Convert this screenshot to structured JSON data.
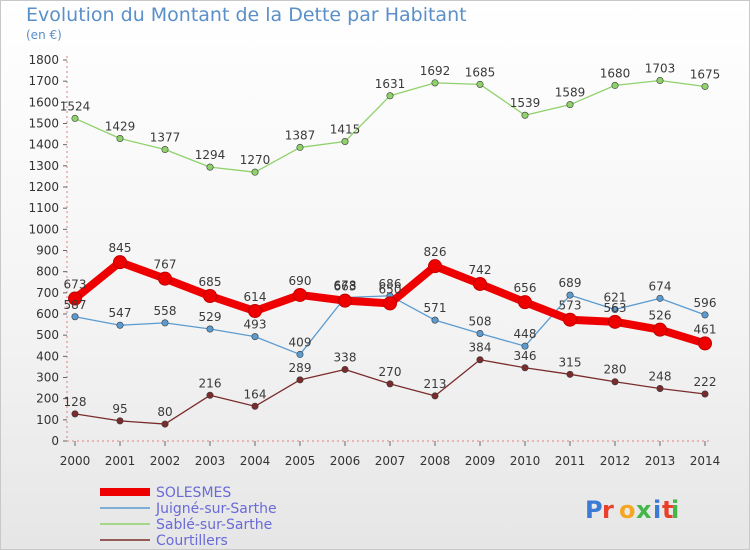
{
  "header": {
    "title": "Evolution du Montant de la Dette par Habitant",
    "subtitle": "(en €)"
  },
  "logo": {
    "text": "Proxiti",
    "colors": [
      "#3b7bd6",
      "#e8402a",
      "#f5a623",
      "#45b649",
      "#3b7bd6",
      "#e8402a",
      "#45b649"
    ]
  },
  "chart_data": {
    "type": "line",
    "title": "Evolution du Montant de la Dette par Habitant",
    "subtitle": "(en €)",
    "xlabel": "",
    "ylabel": "",
    "categories": [
      "2000",
      "2001",
      "2002",
      "2003",
      "2004",
      "2005",
      "2006",
      "2007",
      "2008",
      "2009",
      "2010",
      "2011",
      "2012",
      "2013",
      "2014"
    ],
    "ylim": [
      0,
      1800
    ],
    "yticks": [
      0,
      100,
      200,
      300,
      400,
      500,
      600,
      700,
      800,
      900,
      1000,
      1100,
      1200,
      1300,
      1400,
      1500,
      1600,
      1700,
      1800
    ],
    "grid": false,
    "legend_position": "bottom-left",
    "series": [
      {
        "name": "SOLESMES",
        "color": "#ee0000",
        "width": 8,
        "values": [
          673,
          845,
          767,
          685,
          614,
          690,
          663,
          650,
          826,
          742,
          656,
          573,
          563,
          526,
          461
        ],
        "labels": [
          "673",
          "845",
          "767",
          "685",
          "614",
          "690",
          "663",
          "650",
          "826",
          "742",
          "656",
          "573",
          "563",
          "526",
          "461"
        ]
      },
      {
        "name": "Juigné-sur-Sarthe",
        "color": "#5b9bd0",
        "width": 1.3,
        "values": [
          587,
          547,
          558,
          529,
          493,
          409,
          678,
          686,
          571,
          508,
          448,
          689,
          621,
          674,
          596
        ],
        "labels": [
          "587",
          "547",
          "558",
          "529",
          "493",
          "409",
          "678",
          "686",
          "571",
          "508",
          "448",
          "689",
          "621",
          "674",
          "596"
        ]
      },
      {
        "name": "Sablé-sur-Sarthe",
        "color": "#8fd16a",
        "width": 1.3,
        "values": [
          1524,
          1429,
          1377,
          1294,
          1270,
          1387,
          1415,
          1631,
          1692,
          1685,
          1539,
          1589,
          1680,
          1703,
          1675
        ],
        "labels": [
          "1524",
          "1429",
          "1377",
          "1294",
          "1270",
          "1387",
          "1415",
          "1631",
          "1692",
          "1685",
          "1539",
          "1589",
          "1680",
          "1703",
          "1675"
        ]
      },
      {
        "name": "Courtillers",
        "color": "#7a2c2c",
        "width": 1.3,
        "values": [
          128,
          95,
          80,
          216,
          164,
          289,
          338,
          270,
          213,
          384,
          346,
          315,
          280,
          248,
          222
        ],
        "labels": [
          "128",
          "95",
          "80",
          "216",
          "164",
          "289",
          "338",
          "270",
          "213",
          "384",
          "346",
          "315",
          "280",
          "248",
          "222"
        ]
      }
    ]
  }
}
